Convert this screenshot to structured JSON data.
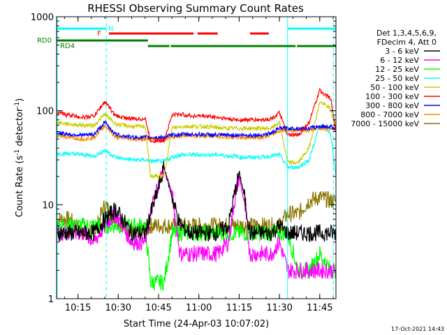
{
  "chart_data": {
    "type": "line",
    "title": "RHESSI Observing Summary Count Rates",
    "xlabel": "Start Time (24-Apr-03 10:07:02)",
    "ylabel_main": "Count Rate (s",
    "ylabel_sup1": "-1",
    "ylabel_mid": " detector",
    "ylabel_sup2": "-1",
    "ylabel_end": ")",
    "x_unit": "minutes after 10:07:02",
    "xlim": [
      0,
      104
    ],
    "ylim": [
      1,
      1000
    ],
    "yscale": "log",
    "x_ticks": [
      {
        "label": "10:15",
        "value": 7.97
      },
      {
        "label": "10:30",
        "value": 22.97
      },
      {
        "label": "10:45",
        "value": 37.97
      },
      {
        "label": "11:00",
        "value": 52.97
      },
      {
        "label": "11:15",
        "value": 67.97
      },
      {
        "label": "11:30",
        "value": 82.97
      },
      {
        "label": "11:45",
        "value": 97.97
      }
    ],
    "y_ticks": [
      {
        "label": "1",
        "value": 1
      },
      {
        "label": "10",
        "value": 10
      },
      {
        "label": "100",
        "value": 100
      },
      {
        "label": "1000",
        "value": 1000
      }
    ],
    "legend_header": [
      "Det 1,3,4,5,6,9,",
      "FDecim 4, Att 0"
    ],
    "legend_position": "right",
    "series": [
      {
        "name": "3 - 6 keV",
        "color": "#000000",
        "x": [
          0,
          5,
          10,
          14,
          18,
          22,
          28,
          33,
          35,
          37,
          40,
          43,
          46,
          50,
          55,
          60,
          64,
          66,
          68,
          70,
          72,
          76,
          80,
          83,
          86,
          90,
          94,
          98,
          102,
          104
        ],
        "y": [
          5,
          5,
          5,
          5,
          7,
          9,
          5,
          5,
          8,
          12,
          25,
          12,
          6,
          5,
          5,
          5,
          6,
          12,
          22,
          12,
          5,
          5,
          5,
          6,
          5,
          5,
          5,
          5,
          5,
          5
        ]
      },
      {
        "name": "6 - 12 keV",
        "color": "#ff00ff",
        "x": [
          0,
          5,
          10,
          14,
          18,
          22,
          28,
          33,
          35,
          37,
          40,
          43,
          46,
          50,
          55,
          60,
          64,
          66,
          68,
          70,
          72,
          76,
          80,
          83,
          86,
          90,
          94,
          98,
          102,
          104
        ],
        "y": [
          5,
          5,
          5,
          4,
          6,
          8,
          4,
          4,
          8,
          14,
          25,
          13,
          3,
          3,
          3,
          3,
          4,
          10,
          20,
          10,
          3,
          3,
          3,
          4,
          2,
          2,
          2,
          2,
          2,
          2
        ]
      },
      {
        "name": "12 - 25 keV",
        "color": "#00ff00",
        "x": [
          0,
          5,
          10,
          14,
          18,
          22,
          28,
          33,
          35,
          37,
          40,
          43,
          46,
          50,
          55,
          60,
          64,
          66,
          68,
          70,
          72,
          76,
          80,
          83,
          86,
          90,
          94,
          98,
          102,
          104
        ],
        "y": [
          6,
          6,
          6,
          6,
          6,
          6,
          6,
          6,
          1.5,
          1.5,
          1.5,
          5,
          5,
          5,
          5,
          5,
          5,
          5,
          5,
          5,
          5,
          5,
          5,
          5,
          5,
          2,
          2,
          3,
          2,
          2
        ]
      },
      {
        "name": "25 - 50 keV",
        "color": "#00ffff",
        "x": [
          0,
          5,
          10,
          14,
          18,
          22,
          28,
          33,
          35,
          37,
          40,
          43,
          46,
          50,
          55,
          60,
          64,
          66,
          68,
          70,
          72,
          76,
          80,
          83,
          86,
          90,
          94,
          98,
          102,
          104
        ],
        "y": [
          35,
          35,
          34,
          33,
          38,
          32,
          30,
          30,
          29,
          29,
          29,
          32,
          34,
          34,
          34,
          34,
          33,
          33,
          32,
          32,
          32,
          32,
          33,
          34,
          25,
          25,
          30,
          70,
          58,
          20
        ]
      },
      {
        "name": "50 - 100 keV",
        "color": "#cccc00",
        "x": [
          0,
          5,
          10,
          14,
          18,
          22,
          28,
          33,
          35,
          37,
          40,
          43,
          46,
          50,
          55,
          60,
          64,
          66,
          68,
          70,
          72,
          76,
          80,
          83,
          86,
          90,
          94,
          98,
          102,
          104
        ],
        "y": [
          75,
          72,
          70,
          70,
          92,
          72,
          68,
          68,
          20,
          20,
          20,
          65,
          68,
          68,
          68,
          66,
          65,
          65,
          65,
          65,
          65,
          65,
          65,
          75,
          28,
          28,
          40,
          125,
          105,
          60
        ]
      },
      {
        "name": "100 - 300 keV",
        "color": "#ff0000",
        "x": [
          0,
          5,
          10,
          14,
          18,
          22,
          28,
          33,
          35,
          37,
          40,
          43,
          46,
          50,
          55,
          60,
          64,
          66,
          68,
          70,
          72,
          76,
          80,
          83,
          86,
          90,
          94,
          98,
          102,
          104
        ],
        "y": [
          95,
          90,
          85,
          88,
          125,
          88,
          82,
          82,
          48,
          48,
          48,
          90,
          92,
          88,
          88,
          85,
          82,
          80,
          80,
          80,
          80,
          80,
          82,
          95,
          55,
          55,
          75,
          165,
          135,
          60
        ]
      },
      {
        "name": "300 - 800 keV",
        "color": "#0000ff",
        "x": [
          0,
          5,
          10,
          14,
          18,
          22,
          28,
          33,
          35,
          37,
          40,
          43,
          46,
          50,
          55,
          60,
          64,
          66,
          68,
          70,
          72,
          76,
          80,
          83,
          86,
          90,
          94,
          98,
          102,
          104
        ],
        "y": [
          58,
          56,
          55,
          56,
          75,
          56,
          52,
          52,
          52,
          52,
          52,
          55,
          56,
          56,
          56,
          55,
          55,
          55,
          55,
          55,
          55,
          55,
          58,
          65,
          65,
          65,
          65,
          68,
          68,
          65
        ]
      },
      {
        "name": "800 - 7000 keV",
        "color": "#ff8800",
        "x": [
          0,
          5,
          10,
          14,
          18,
          22,
          28,
          33,
          35,
          37,
          40,
          43,
          46,
          50,
          55,
          60,
          64,
          66,
          68,
          70,
          72,
          76,
          80,
          83,
          86,
          90,
          94,
          98,
          102,
          104
        ],
        "y": [
          55,
          52,
          50,
          52,
          70,
          52,
          50,
          50,
          50,
          50,
          50,
          52,
          54,
          54,
          54,
          53,
          52,
          52,
          52,
          52,
          52,
          52,
          55,
          62,
          62,
          62,
          62,
          65,
          65,
          62
        ]
      },
      {
        "name": "7000 - 15000 keV",
        "color": "#8b7500",
        "x": [
          0,
          5,
          10,
          14,
          18,
          22,
          28,
          33,
          35,
          37,
          40,
          43,
          46,
          50,
          55,
          60,
          64,
          66,
          68,
          70,
          72,
          76,
          80,
          83,
          86,
          90,
          94,
          98,
          102,
          104
        ],
        "y": [
          7,
          7,
          5,
          5,
          10,
          7,
          5,
          5,
          6,
          6,
          6,
          6,
          6,
          6,
          6,
          6,
          6,
          6,
          6,
          6,
          6,
          6,
          6,
          6,
          8,
          8,
          11,
          12,
          11,
          11
        ]
      }
    ],
    "annotations": {
      "night_bars": [
        {
          "label": "N",
          "color": "#00ffff",
          "segments": [
            [
              0,
              18.5
            ],
            [
              86,
              104
            ]
          ]
        }
      ],
      "flare_bars": [
        {
          "label": "F",
          "color": "#ff0000",
          "segments": [
            [
              19.5,
              51
            ],
            [
              52.5,
              60
            ],
            [
              72,
              79
            ]
          ]
        }
      ],
      "decimation": [
        {
          "label": "RD0",
          "color": "#008000",
          "segments": [
            [
              0,
              34
            ]
          ]
        },
        {
          "label": "RD4",
          "color": "#008000",
          "segments": [
            [
              34,
              42
            ],
            [
              42.5,
              89
            ],
            [
              89.5,
              104
            ]
          ]
        }
      ],
      "vertical_lines": [
        {
          "x": 0.2,
          "color": "#00ffff",
          "style": "solid"
        },
        {
          "x": 18.5,
          "color": "#00ffff",
          "style": "dashed"
        },
        {
          "x": 86,
          "color": "#00ffff",
          "style": "solid"
        },
        {
          "x": 103,
          "color": "#00ffff",
          "style": "dashed"
        }
      ]
    },
    "grid": false,
    "timestamp": "17-Oct-2021 14:43"
  }
}
